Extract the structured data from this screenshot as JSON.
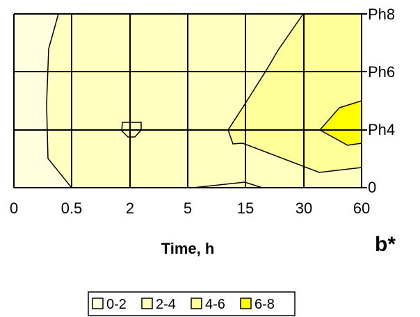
{
  "chart_data": {
    "type": "contour",
    "title": "b*",
    "xlabel": "Time, h",
    "ylabel": "",
    "x": [
      "0",
      "0.5",
      "2",
      "5",
      "15",
      "30",
      "60"
    ],
    "y": [
      "0",
      "Ph4",
      "Ph6",
      "Ph8"
    ],
    "grid": true,
    "z": [
      [
        1.5,
        2.5,
        2.5,
        2.5,
        3.0,
        3.3,
        4.3
      ],
      [
        1.5,
        2.3,
        3.3,
        3.5,
        3.6,
        4.9,
        6.0
      ],
      [
        1.4,
        2.3,
        2.4,
        2.5,
        3.5,
        4.5,
        5.3
      ],
      [
        1.5,
        2.4,
        2.5,
        2.6,
        3.7,
        4.1,
        4.6
      ]
    ],
    "legend": {
      "placement": "bottom",
      "entries": [
        {
          "label": "0-2",
          "color": "#FFFFE0"
        },
        {
          "label": "2-4",
          "color": "#FFFFC0"
        },
        {
          "label": "4-6",
          "color": "#FFFF99"
        },
        {
          "label": "6-8",
          "color": "#FFFF00"
        }
      ]
    },
    "colors": {
      "band_0_2": "#FFFFE0",
      "band_2_4": "#FFFFC0",
      "band_4_6": "#FFFF99",
      "band_6_8": "#FFFF00",
      "grid": "#000000",
      "contour": "#000000"
    }
  }
}
